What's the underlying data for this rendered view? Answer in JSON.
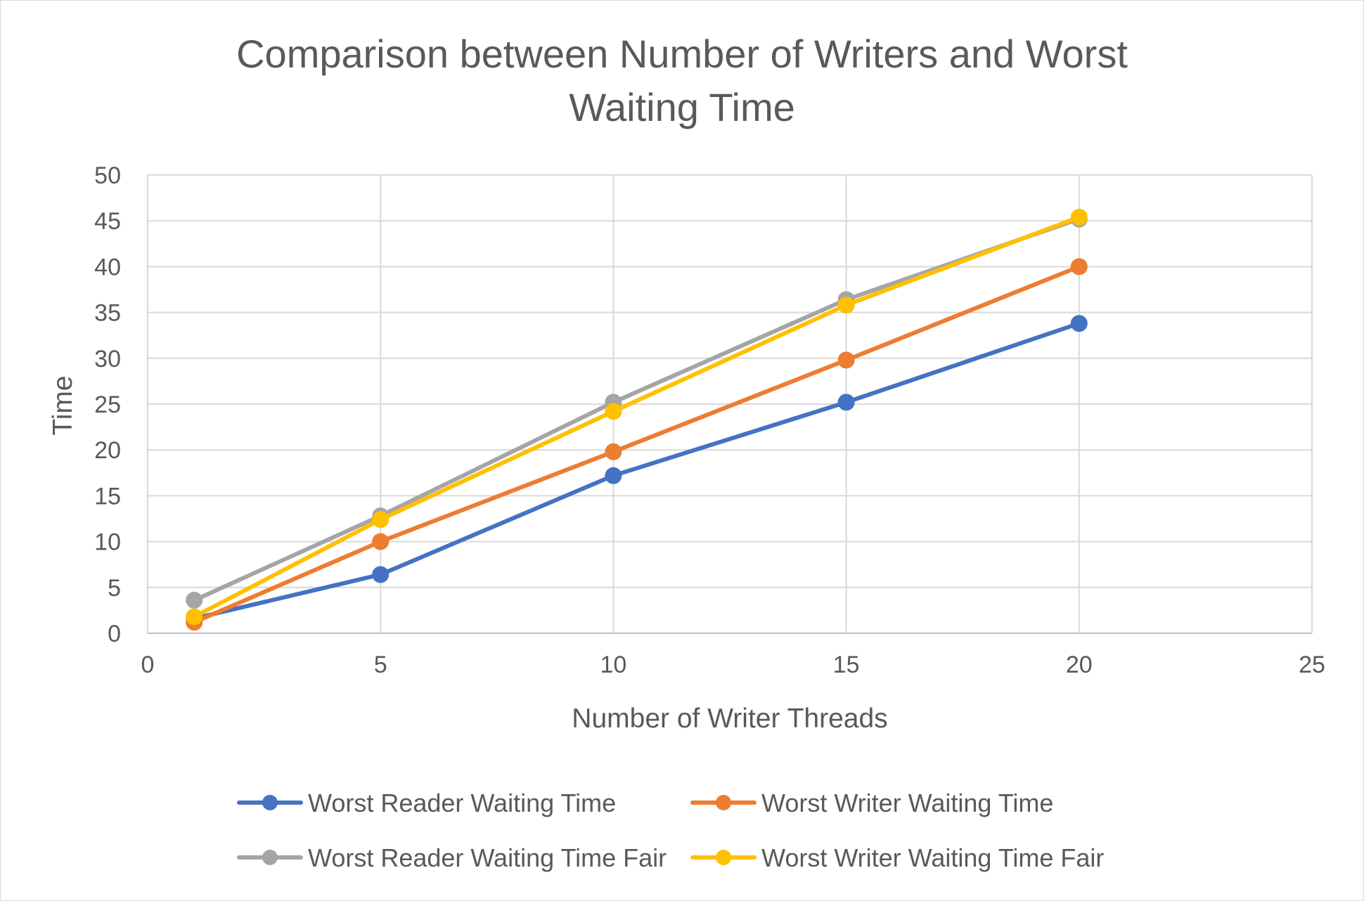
{
  "chart_data": {
    "type": "line",
    "title": "Comparison between Number of Writers and Worst Waiting Time",
    "title_lines": [
      "Comparison between Number of Writers and Worst",
      "Waiting Time"
    ],
    "xlabel": "Number of Writer Threads",
    "ylabel": "Time",
    "xlim": [
      0,
      25
    ],
    "ylim": [
      0,
      50
    ],
    "x_ticks": [
      0,
      5,
      10,
      15,
      20,
      25
    ],
    "y_ticks": [
      0,
      5,
      10,
      15,
      20,
      25,
      30,
      35,
      40,
      45,
      50
    ],
    "grid": true,
    "legend_position": "bottom",
    "x": [
      1,
      5,
      10,
      15,
      20
    ],
    "series": [
      {
        "name": "Worst Reader Waiting Time",
        "color": "#4472C4",
        "values": [
          1.6,
          6.4,
          17.2,
          25.2,
          33.8
        ]
      },
      {
        "name": "Worst Writer Waiting Time",
        "color": "#ED7D31",
        "values": [
          1.2,
          10.0,
          19.8,
          29.8,
          40.0
        ]
      },
      {
        "name": "Worst Reader Waiting Time Fair",
        "color": "#A5A5A5",
        "values": [
          3.6,
          12.8,
          25.2,
          36.4,
          45.2
        ]
      },
      {
        "name": "Worst Writer Waiting Time Fair",
        "color": "#FFC000",
        "values": [
          1.8,
          12.4,
          24.2,
          35.8,
          45.4
        ]
      }
    ]
  }
}
